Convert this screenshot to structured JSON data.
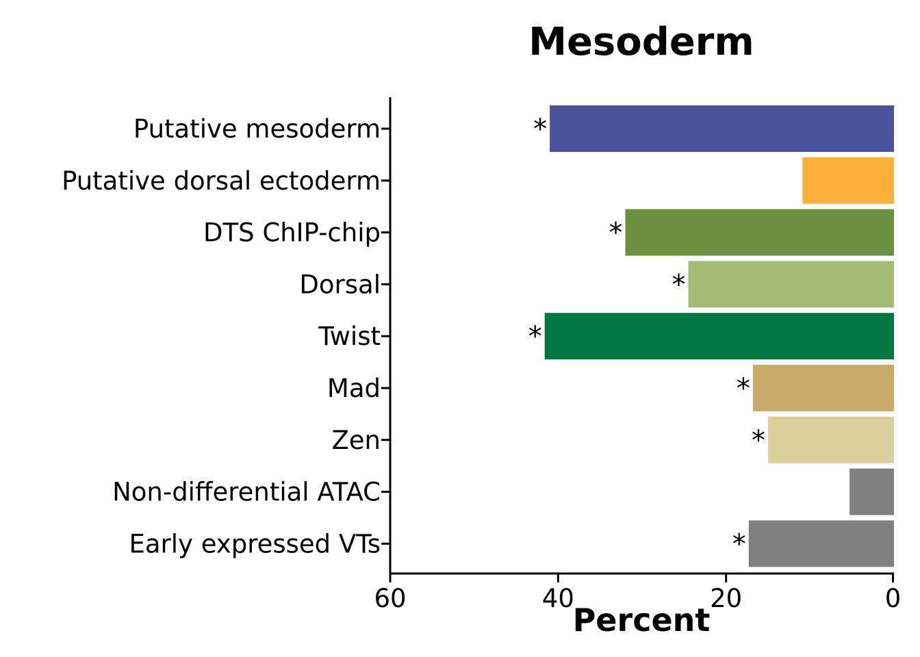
{
  "chart_data": {
    "type": "bar",
    "orientation": "horizontal",
    "x_axis_reversed": true,
    "title": "Mesoderm",
    "xlabel": "Percent",
    "ylabel": "",
    "xlim": [
      60,
      0
    ],
    "xticks": [
      "60",
      "40",
      "20",
      "0"
    ],
    "xtick_values": [
      60,
      40,
      20,
      0
    ],
    "categories": [
      "Putative mesoderm",
      "Putative dorsal ectoderm",
      "DTS ChIP-chip",
      "Dorsal",
      "Twist",
      "Mad",
      "Zen",
      "Non-differential ATAC",
      "Early expressed VTs"
    ],
    "values": [
      41.0,
      10.9,
      32.0,
      24.5,
      41.6,
      16.8,
      15.0,
      5.3,
      17.3
    ],
    "significance": [
      "*",
      "",
      "*",
      "*",
      "*",
      "*",
      "*",
      "",
      "*"
    ],
    "colors": [
      "#4a539c",
      "#fbb03b",
      "#6a913f",
      "#a3bb72",
      "#027840",
      "#c8aa6a",
      "#dbcf9b",
      "#808080",
      "#808080"
    ],
    "grid": false,
    "legend": "none"
  }
}
